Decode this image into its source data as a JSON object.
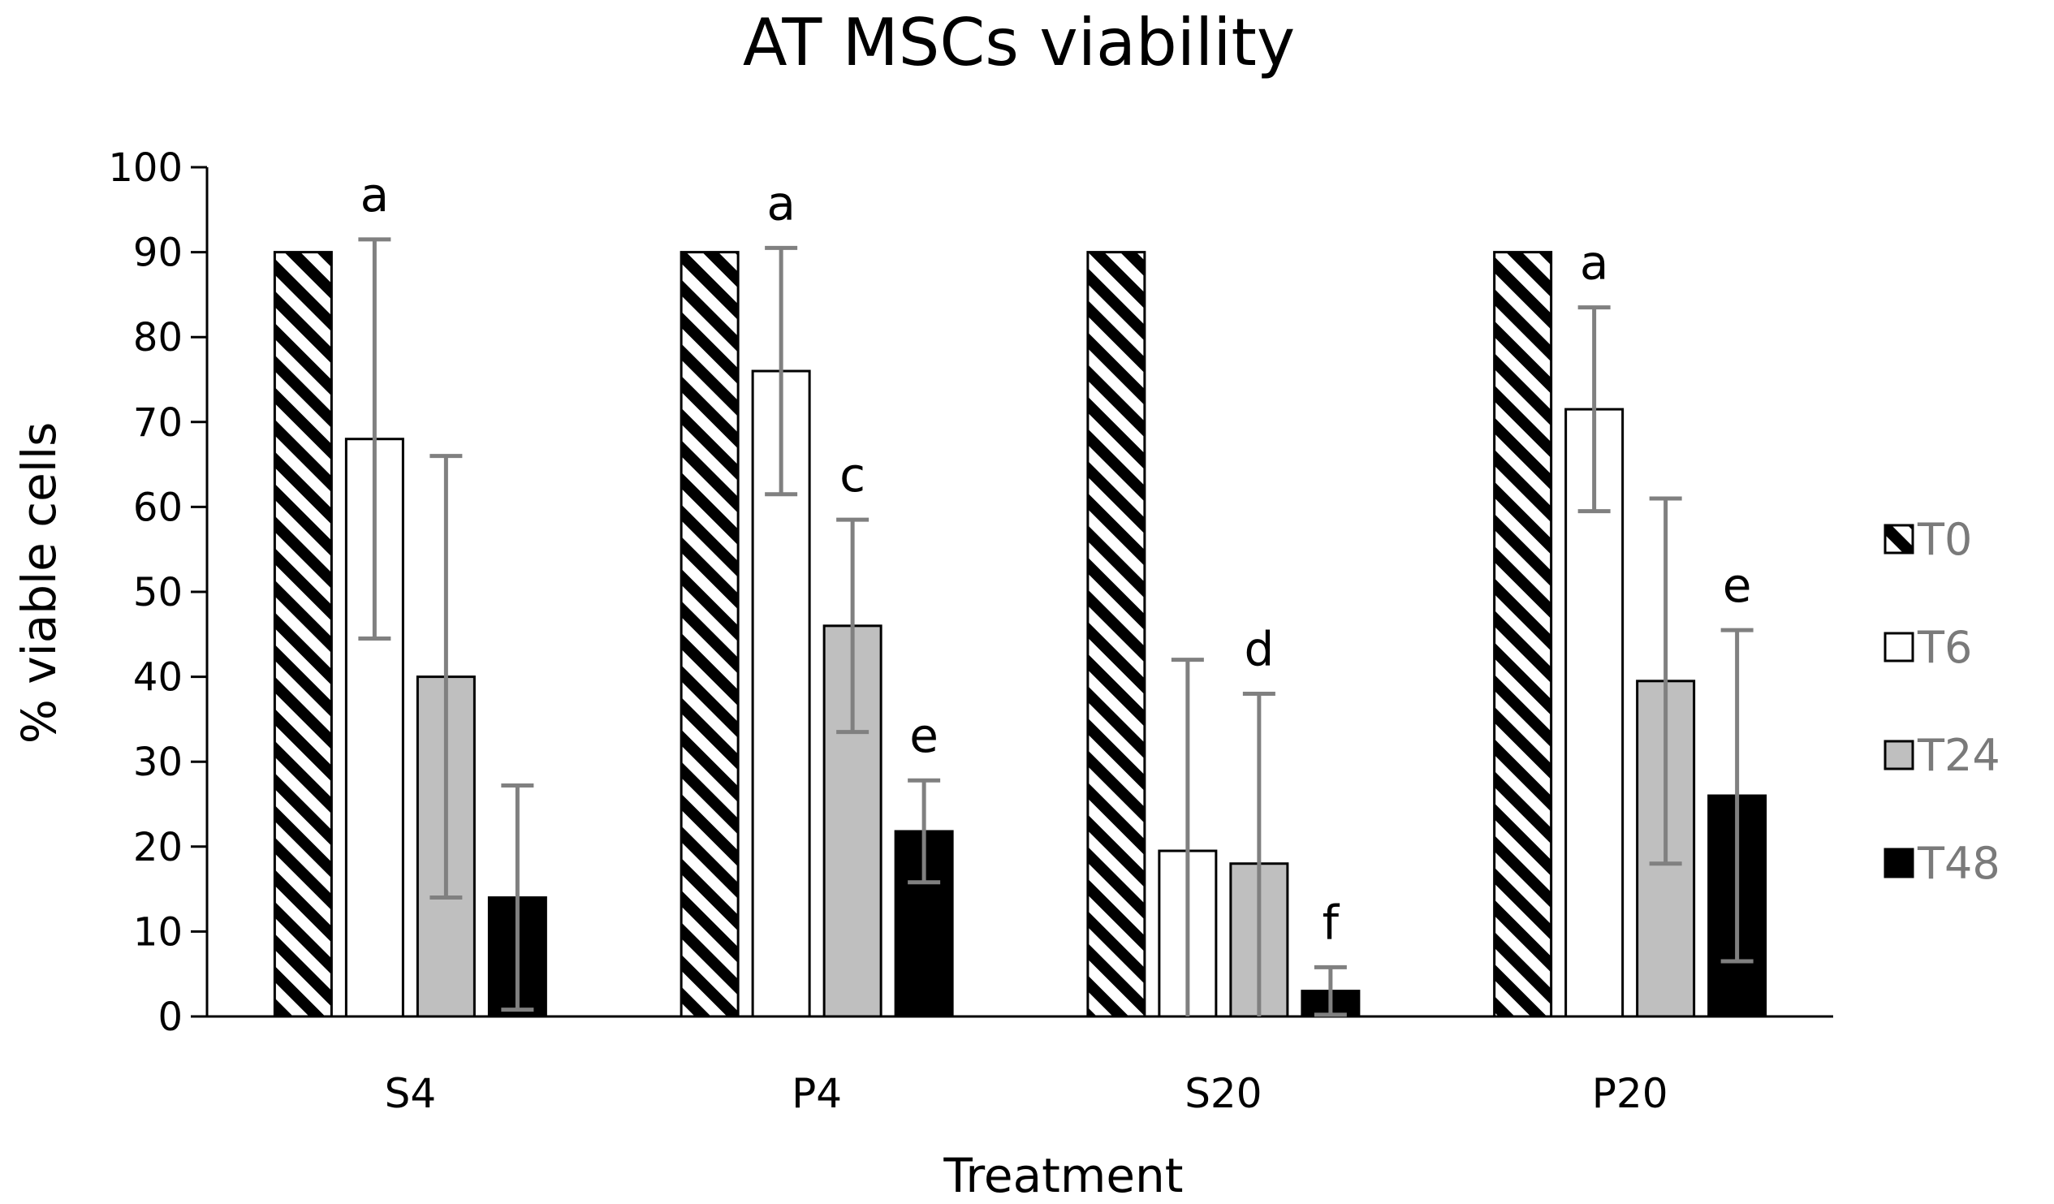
{
  "chart_data": {
    "type": "bar",
    "title": "AT MSCs viability",
    "xlabel": "Treatment",
    "ylabel": "% viable cells",
    "ylim": [
      0,
      100
    ],
    "yticks": [
      0,
      10,
      20,
      30,
      40,
      50,
      60,
      70,
      80,
      90,
      100
    ],
    "categories": [
      "S4",
      "P4",
      "S20",
      "P20"
    ],
    "grid": false,
    "legend_position": "right",
    "series": [
      {
        "name": "T0",
        "values": [
          90,
          90,
          90,
          90
        ],
        "error": [
          0,
          0,
          0,
          0
        ],
        "fill": "hatch"
      },
      {
        "name": "T6",
        "values": [
          68,
          76,
          19.5,
          71.5
        ],
        "error": [
          23.5,
          14.5,
          22.5,
          12
        ],
        "fill": "#ffffff"
      },
      {
        "name": "T24",
        "values": [
          40,
          46,
          18,
          39.5
        ],
        "error": [
          26,
          12.5,
          20,
          21.5
        ],
        "fill": "#bfbfbf"
      },
      {
        "name": "T48",
        "values": [
          14,
          21.8,
          3,
          26
        ],
        "error": [
          13.2,
          6,
          2.8,
          19.5
        ],
        "fill": "#000000"
      }
    ],
    "annotations": [
      {
        "category": "S4",
        "series": "T6",
        "text": "a"
      },
      {
        "category": "P4",
        "series": "T6",
        "text": "a"
      },
      {
        "category": "P4",
        "series": "T24",
        "text": "c"
      },
      {
        "category": "P4",
        "series": "T48",
        "text": "e"
      },
      {
        "category": "S20",
        "series": "T24",
        "text": "d"
      },
      {
        "category": "S20",
        "series": "T48",
        "text": "f"
      },
      {
        "category": "P20",
        "series": "T6",
        "text": "a"
      },
      {
        "category": "P20",
        "series": "T48",
        "text": "e"
      }
    ],
    "colors": {
      "bar_stroke": "#000000",
      "error_bar": "#808080",
      "axis": "#000000",
      "legend_text": "#7a7a7a"
    }
  }
}
